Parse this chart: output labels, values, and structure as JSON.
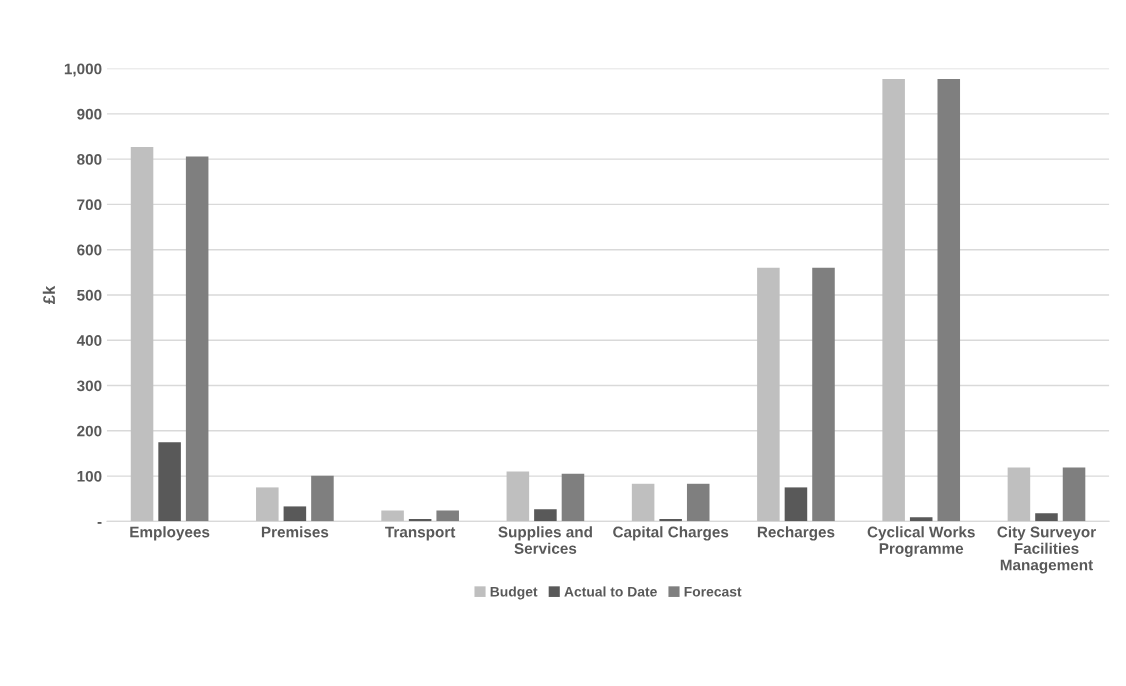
{
  "chart_data": {
    "type": "bar",
    "ylabel": "£k",
    "categories": [
      "Employees",
      "Premises",
      "Transport",
      "Supplies and\nServices",
      "Capital Charges",
      "Recharges",
      "Cyclical Works\nProgramme",
      "City Surveyor\nFacilities\nManagement"
    ],
    "series": [
      {
        "name": "Budget",
        "color": "#bfbfbf",
        "values": [
          827,
          75,
          24,
          110,
          83,
          560,
          977,
          119
        ]
      },
      {
        "name": "Actual to Date",
        "color": "#595959",
        "values": [
          175,
          33,
          5,
          27,
          5,
          75,
          9,
          18
        ]
      },
      {
        "name": "Forecast",
        "color": "#7f7f7f",
        "values": [
          806,
          101,
          24,
          105,
          83,
          560,
          977,
          119
        ]
      }
    ],
    "ylim": [
      0,
      1000
    ],
    "yticks": [
      {
        "value": 0,
        "label": "-"
      },
      100,
      200,
      300,
      400,
      500,
      600,
      700,
      800,
      900,
      {
        "value": 1000,
        "label": "1,000"
      }
    ],
    "grid": "y",
    "legend": "bottom"
  }
}
